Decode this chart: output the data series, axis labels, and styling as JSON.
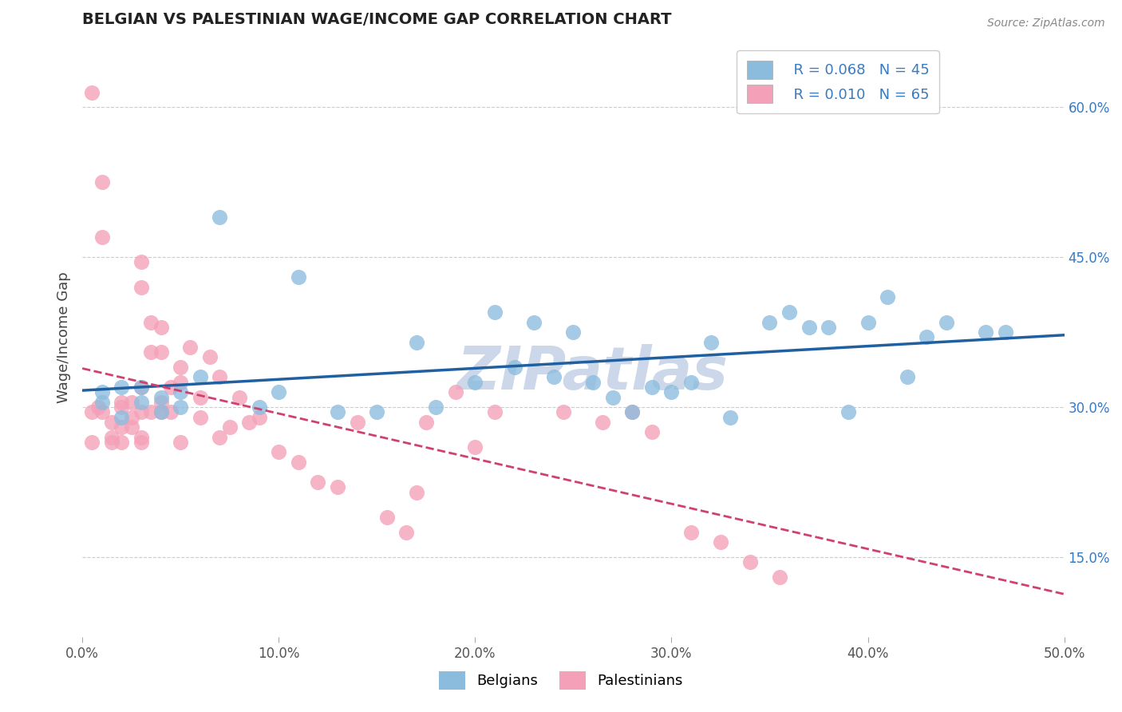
{
  "title": "BELGIAN VS PALESTINIAN WAGE/INCOME GAP CORRELATION CHART",
  "source_text": "Source: ZipAtlas.com",
  "ylabel": "Wage/Income Gap",
  "xlim": [
    0.0,
    0.5
  ],
  "ylim": [
    0.07,
    0.67
  ],
  "xticks": [
    0.0,
    0.1,
    0.2,
    0.3,
    0.4,
    0.5
  ],
  "xticklabels": [
    "0.0%",
    "10.0%",
    "20.0%",
    "30.0%",
    "40.0%",
    "50.0%"
  ],
  "yticks_right": [
    0.15,
    0.3,
    0.45,
    0.6
  ],
  "yticklabels_right": [
    "15.0%",
    "30.0%",
    "45.0%",
    "60.0%"
  ],
  "grid_color": "#cccccc",
  "background_color": "#ffffff",
  "belgian_color": "#8bbcde",
  "palestinian_color": "#f4a0b8",
  "belgian_line_color": "#2060a0",
  "palestinian_line_color": "#d04070",
  "watermark": "ZIPatlas",
  "watermark_color": "#ccd8ea",
  "legend_R_belgian": "R = 0.068",
  "legend_N_belgian": "N = 45",
  "legend_R_palestinian": "R = 0.010",
  "legend_N_palestinian": "N = 65",
  "legend_label_belgian": "Belgians",
  "legend_label_palestinian": "Palestinians",
  "belgian_x": [
    0.01,
    0.01,
    0.02,
    0.02,
    0.03,
    0.03,
    0.04,
    0.04,
    0.05,
    0.05,
    0.06,
    0.07,
    0.09,
    0.1,
    0.11,
    0.13,
    0.15,
    0.17,
    0.18,
    0.2,
    0.21,
    0.22,
    0.23,
    0.24,
    0.25,
    0.26,
    0.27,
    0.28,
    0.29,
    0.3,
    0.31,
    0.32,
    0.33,
    0.35,
    0.36,
    0.37,
    0.38,
    0.39,
    0.4,
    0.41,
    0.42,
    0.43,
    0.44,
    0.46,
    0.47
  ],
  "belgian_y": [
    0.315,
    0.305,
    0.32,
    0.29,
    0.32,
    0.305,
    0.31,
    0.295,
    0.3,
    0.315,
    0.33,
    0.49,
    0.3,
    0.315,
    0.43,
    0.295,
    0.295,
    0.365,
    0.3,
    0.325,
    0.395,
    0.34,
    0.385,
    0.33,
    0.375,
    0.325,
    0.31,
    0.295,
    0.32,
    0.315,
    0.325,
    0.365,
    0.29,
    0.385,
    0.395,
    0.38,
    0.38,
    0.295,
    0.385,
    0.41,
    0.33,
    0.37,
    0.385,
    0.375,
    0.375
  ],
  "palestinian_x": [
    0.005,
    0.005,
    0.005,
    0.008,
    0.01,
    0.01,
    0.01,
    0.015,
    0.015,
    0.015,
    0.02,
    0.02,
    0.02,
    0.02,
    0.025,
    0.025,
    0.025,
    0.03,
    0.03,
    0.03,
    0.03,
    0.03,
    0.03,
    0.035,
    0.035,
    0.035,
    0.04,
    0.04,
    0.04,
    0.04,
    0.045,
    0.045,
    0.05,
    0.05,
    0.05,
    0.055,
    0.06,
    0.06,
    0.065,
    0.07,
    0.07,
    0.075,
    0.08,
    0.085,
    0.09,
    0.1,
    0.11,
    0.12,
    0.13,
    0.14,
    0.155,
    0.165,
    0.17,
    0.175,
    0.19,
    0.2,
    0.21,
    0.245,
    0.265,
    0.28,
    0.29,
    0.31,
    0.325,
    0.34,
    0.355
  ],
  "palestinian_y": [
    0.615,
    0.295,
    0.265,
    0.3,
    0.525,
    0.47,
    0.295,
    0.285,
    0.27,
    0.265,
    0.3,
    0.305,
    0.28,
    0.265,
    0.305,
    0.29,
    0.28,
    0.445,
    0.42,
    0.32,
    0.295,
    0.27,
    0.265,
    0.385,
    0.355,
    0.295,
    0.38,
    0.355,
    0.305,
    0.295,
    0.32,
    0.295,
    0.34,
    0.325,
    0.265,
    0.36,
    0.31,
    0.29,
    0.35,
    0.33,
    0.27,
    0.28,
    0.31,
    0.285,
    0.29,
    0.255,
    0.245,
    0.225,
    0.22,
    0.285,
    0.19,
    0.175,
    0.215,
    0.285,
    0.315,
    0.26,
    0.295,
    0.295,
    0.285,
    0.295,
    0.275,
    0.175,
    0.165,
    0.145,
    0.13
  ]
}
